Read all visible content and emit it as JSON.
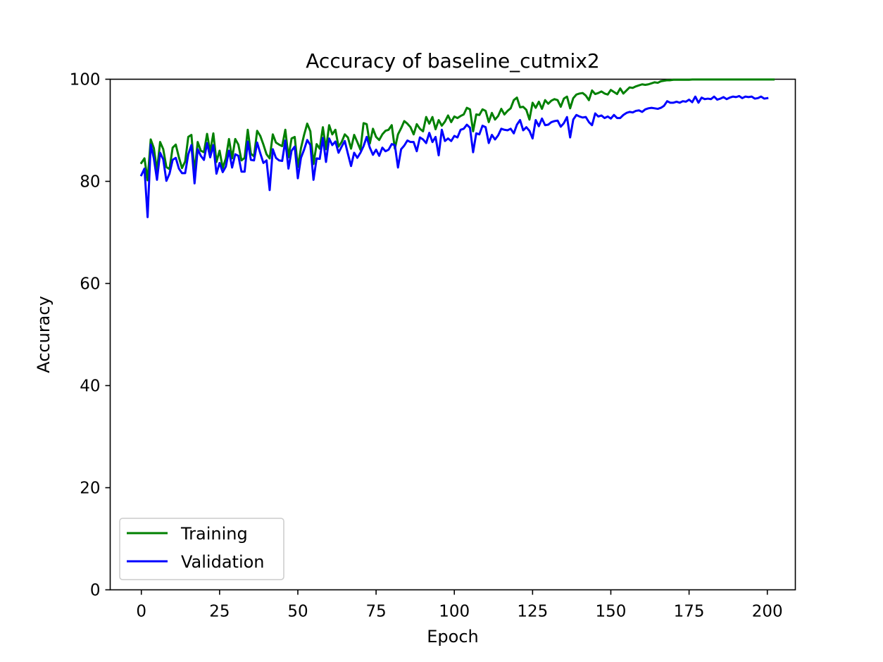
{
  "chart_data": {
    "type": "line",
    "title": "Accuracy of baseline_cutmix2",
    "xlabel": "Epoch",
    "ylabel": "Accuracy",
    "xlim": [
      -9.95,
      208.95
    ],
    "ylim": [
      0,
      100
    ],
    "xticks": [
      0,
      25,
      50,
      75,
      100,
      125,
      150,
      175,
      200
    ],
    "yticks": [
      0,
      20,
      40,
      60,
      80,
      100
    ],
    "grid": false,
    "legend_position": "lower-left",
    "series": [
      {
        "name": "Training",
        "color": "#008000",
        "values": [
          83.6,
          84.5,
          80.2,
          88.2,
          86.5,
          82.1,
          87.7,
          86.3,
          82.8,
          82.4,
          86.6,
          87.2,
          84.7,
          82.6,
          83.9,
          88.7,
          89.1,
          81.8,
          87.7,
          86.0,
          85.7,
          89.3,
          85.8,
          89.4,
          83.8,
          86.0,
          82.6,
          84.5,
          88.3,
          84.5,
          88.3,
          87.2,
          84.1,
          84.6,
          90.1,
          85.4,
          84.9,
          89.9,
          88.9,
          87.2,
          85.3,
          84.5,
          89.2,
          87.6,
          87.2,
          86.9,
          90.1,
          84.7,
          88.4,
          88.7,
          82.8,
          86.5,
          89.1,
          91.3,
          89.8,
          83.4,
          87.3,
          86.4,
          90.6,
          86.3,
          91.0,
          89.2,
          90.1,
          86.8,
          87.7,
          89.2,
          88.6,
          86.4,
          89.1,
          87.7,
          86.2,
          91.4,
          91.2,
          87.4,
          90.3,
          88.7,
          88.1,
          89.2,
          89.9,
          90.1,
          91.0,
          86.4,
          89.2,
          90.4,
          91.8,
          91.3,
          90.6,
          89.2,
          91.2,
          90.3,
          89.8,
          92.6,
          91.3,
          92.6,
          90.2,
          92.0,
          90.9,
          91.7,
          92.9,
          91.6,
          92.7,
          92.4,
          92.8,
          93.1,
          94.4,
          94.1,
          89.8,
          93.1,
          93.0,
          94.1,
          93.8,
          91.6,
          93.4,
          92.1,
          92.8,
          94.2,
          93.1,
          93.8,
          94.3,
          95.9,
          96.4,
          94.5,
          94.6,
          94.0,
          92.1,
          95.4,
          94.4,
          95.6,
          94.2,
          95.9,
          95.2,
          95.8,
          96.1,
          95.9,
          94.6,
          96.2,
          96.6,
          94.3,
          96.3,
          97.0,
          97.2,
          97.3,
          96.8,
          95.9,
          97.8,
          97.1,
          97.3,
          97.6,
          97.2,
          97.0,
          97.9,
          97.5,
          97.1,
          98.2,
          97.2,
          97.8,
          98.4,
          98.3,
          98.6,
          98.8,
          99.0,
          98.9,
          99.0,
          99.2,
          99.4,
          99.3,
          99.6,
          99.7,
          99.8,
          99.8,
          99.9,
          99.9,
          99.9,
          99.9,
          99.9,
          99.9,
          99.95,
          99.95,
          99.95,
          99.95,
          99.95,
          99.95,
          99.95,
          99.95,
          99.95,
          99.95,
          99.95,
          99.95,
          99.95,
          99.95,
          99.95,
          99.95,
          99.95,
          99.95,
          99.95,
          99.95,
          99.95,
          99.95,
          99.95,
          99.95,
          99.95,
          99.95,
          99.95
        ]
      },
      {
        "name": "Validation",
        "color": "#0000ff",
        "values": [
          81.2,
          82.5,
          73.0,
          87.2,
          84.5,
          80.3,
          85.6,
          84.3,
          80.1,
          81.5,
          84.2,
          84.6,
          82.5,
          81.6,
          81.6,
          85.3,
          87.1,
          79.6,
          86.3,
          85.0,
          84.2,
          87.5,
          84.7,
          87.1,
          81.5,
          83.6,
          81.8,
          82.9,
          86.0,
          82.7,
          85.3,
          85.0,
          81.9,
          81.9,
          87.8,
          84.2,
          84.1,
          87.6,
          85.5,
          83.6,
          84.1,
          78.3,
          86.3,
          84.6,
          84.1,
          84.0,
          88.0,
          82.5,
          86.0,
          86.8,
          80.6,
          84.6,
          86.2,
          88.1,
          87.1,
          80.3,
          84.5,
          84.4,
          88.5,
          83.8,
          88.4,
          87.1,
          87.8,
          85.6,
          86.8,
          87.9,
          85.4,
          83.0,
          85.6,
          84.6,
          85.6,
          86.9,
          88.7,
          86.6,
          85.2,
          86.2,
          85.0,
          86.6,
          85.9,
          86.2,
          87.3,
          87.1,
          82.7,
          86.3,
          87.0,
          88.0,
          87.7,
          87.7,
          85.9,
          88.6,
          88.2,
          87.5,
          89.5,
          87.7,
          88.7,
          85.1,
          90.1,
          87.9,
          88.4,
          87.9,
          88.9,
          88.6,
          90.1,
          90.3,
          91.1,
          90.5,
          85.7,
          89.4,
          89.2,
          90.9,
          90.6,
          87.5,
          89.1,
          88.2,
          89.0,
          90.3,
          90.1,
          90.0,
          90.3,
          89.4,
          91.1,
          92.0,
          90.0,
          90.6,
          89.9,
          88.4,
          92.0,
          90.8,
          92.3,
          91.0,
          91.1,
          91.6,
          91.8,
          91.9,
          90.7,
          91.4,
          92.6,
          88.6,
          92.1,
          93.0,
          92.7,
          92.5,
          92.6,
          91.6,
          91.0,
          93.3,
          92.7,
          92.9,
          92.4,
          92.7,
          92.3,
          93.0,
          92.4,
          92.4,
          93.0,
          93.4,
          93.6,
          93.5,
          93.8,
          93.9,
          93.6,
          94.1,
          94.3,
          94.4,
          94.3,
          94.2,
          94.4,
          94.8,
          95.7,
          95.4,
          95.4,
          95.6,
          95.4,
          95.7,
          95.6,
          96.0,
          95.5,
          96.6,
          95.4,
          96.4,
          96.1,
          96.2,
          96.1,
          96.6,
          96.0,
          96.2,
          96.5,
          96.1,
          96.4,
          96.6,
          96.5,
          96.7,
          96.3,
          96.6,
          96.5,
          96.6,
          96.2,
          96.3,
          96.6,
          96.2,
          96.3
        ]
      }
    ]
  }
}
